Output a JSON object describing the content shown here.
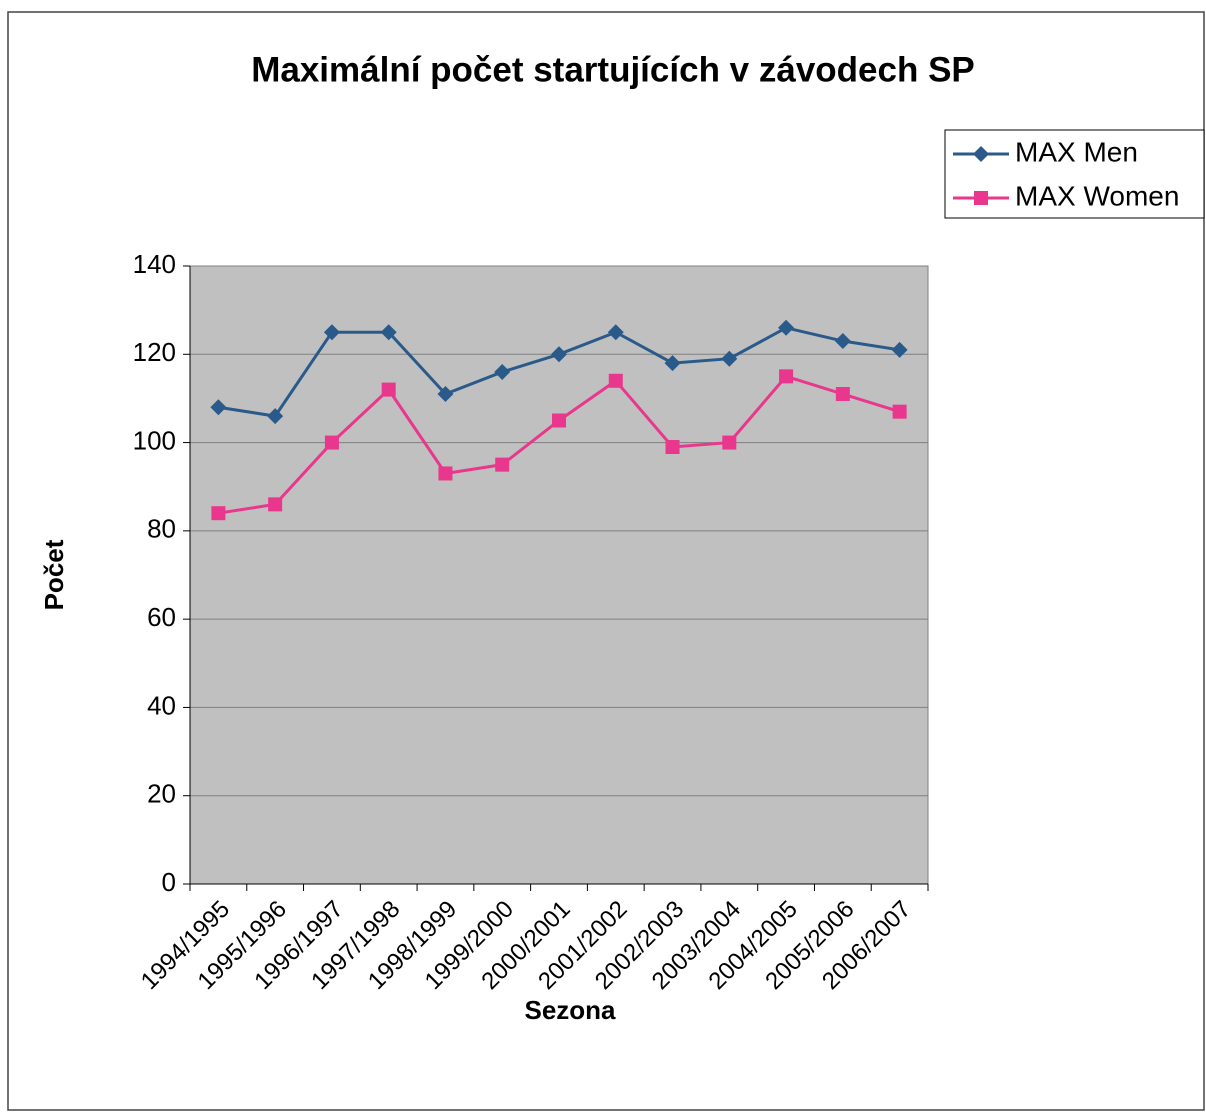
{
  "chart_data": {
    "type": "line",
    "title": "Maximální počet startujících v závodech SP",
    "xlabel": "Sezona",
    "ylabel": "Počet",
    "categories": [
      "1994/1995",
      "1995/1996",
      "1996/1997",
      "1997/1998",
      "1998/1999",
      "1999/2000",
      "2000/2001",
      "2001/2002",
      "2002/2003",
      "2003/2004",
      "2004/2005",
      "2005/2006",
      "2006/2007"
    ],
    "series": [
      {
        "name": "MAX Men",
        "color": "#2a5a8a",
        "marker": "diamond",
        "values": [
          108,
          106,
          125,
          125,
          111,
          116,
          120,
          125,
          118,
          119,
          126,
          123,
          121
        ]
      },
      {
        "name": "MAX Women",
        "color": "#e8378c",
        "marker": "square",
        "values": [
          84,
          86,
          100,
          112,
          93,
          95,
          105,
          114,
          99,
          100,
          115,
          111,
          107
        ]
      }
    ],
    "ylim": [
      0,
      140
    ],
    "yticks": [
      0,
      20,
      40,
      60,
      80,
      100,
      120,
      140
    ],
    "grid": true,
    "legend": "upper right"
  }
}
